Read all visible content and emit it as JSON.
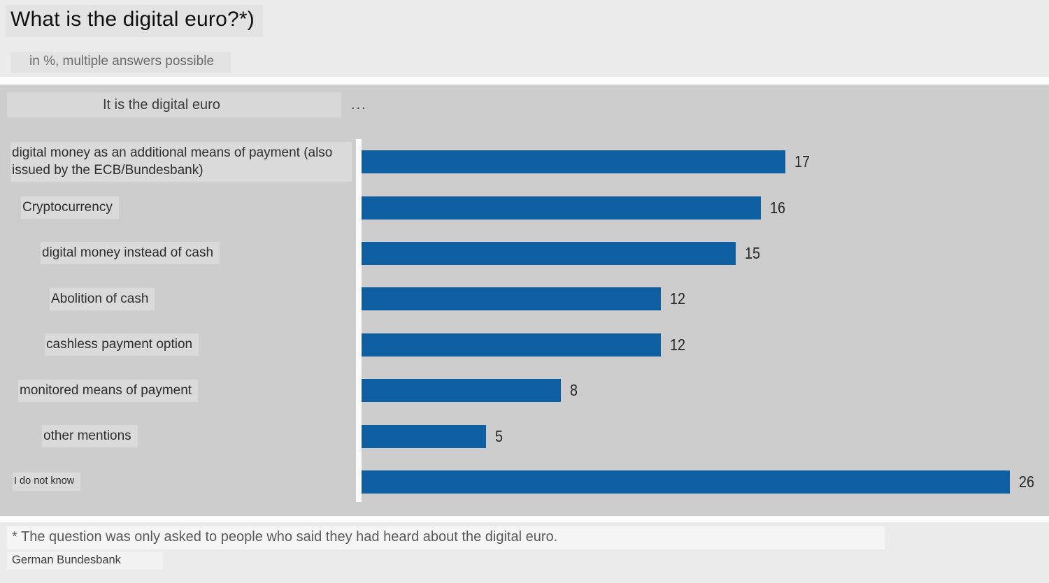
{
  "header": {
    "title": "What is the digital euro?*)",
    "subtitle": "in %, multiple answers possible"
  },
  "chart": {
    "heading": "It is the digital euro",
    "heading_suffix": "..."
  },
  "chart_data": {
    "type": "bar",
    "orientation": "horizontal",
    "title": "What is the digital euro?*)",
    "subtitle": "in %, multiple answers possible",
    "unit": "%",
    "categories": [
      "digital money as an additional means of payment (also issued by the ECB/Bundesbank)",
      "Cryptocurrency",
      "digital money instead of cash",
      "Abolition of cash",
      "cashless payment option",
      "monitored means of payment",
      "other mentions",
      "I do not know"
    ],
    "values": [
      17,
      16,
      15,
      12,
      12,
      8,
      5,
      26
    ],
    "xlim": [
      0,
      26
    ],
    "grid": false,
    "legend": false,
    "value_labels_shown": true,
    "bar_color": "#0e5ea2",
    "plot_background": "#cdcdcd",
    "page_background": "#ebebeb"
  },
  "footer": {
    "footnote": "* The question was only asked to people who said they had heard about the digital euro.",
    "source": "German Bundesbank"
  }
}
